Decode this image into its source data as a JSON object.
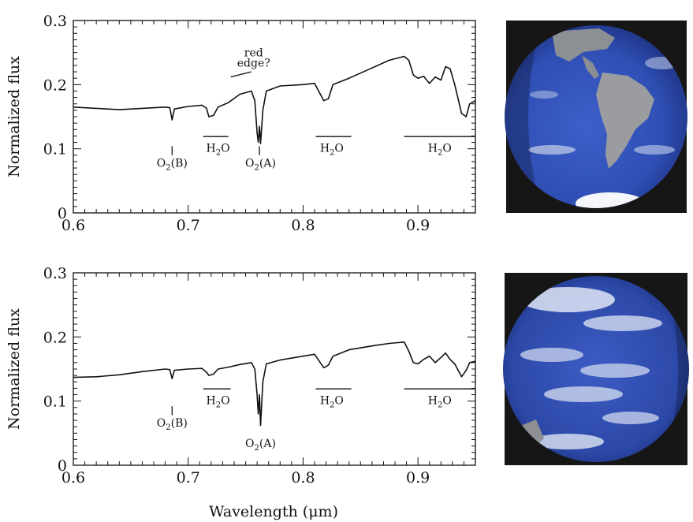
{
  "figure": {
    "x_axis_title": "Wavelength (μm)",
    "photo_top_icon": "earth-globe-americas-icon",
    "photo_bottom_icon": "earth-globe-pacific-icon"
  },
  "chart_data": [
    {
      "type": "line",
      "ylabel": "Normalized flux",
      "xlabel": "",
      "xlim": [
        0.6,
        0.95
      ],
      "ylim": [
        0,
        0.3
      ],
      "x_ticks": [
        "0.6",
        "0.7",
        "0.8",
        "0.9"
      ],
      "y_ticks": [
        "0",
        "0.1",
        "0.2",
        "0.3"
      ],
      "series": [
        {
          "color": "#111111",
          "points": [
            [
              0.6,
              0.165
            ],
            [
              0.62,
              0.163
            ],
            [
              0.64,
              0.161
            ],
            [
              0.66,
              0.163
            ],
            [
              0.68,
              0.165
            ],
            [
              0.684,
              0.164
            ],
            [
              0.686,
              0.145
            ],
            [
              0.688,
              0.162
            ],
            [
              0.7,
              0.166
            ],
            [
              0.712,
              0.168
            ],
            [
              0.716,
              0.163
            ],
            [
              0.718,
              0.15
            ],
            [
              0.722,
              0.152
            ],
            [
              0.726,
              0.165
            ],
            [
              0.735,
              0.172
            ],
            [
              0.745,
              0.185
            ],
            [
              0.755,
              0.19
            ],
            [
              0.758,
              0.175
            ],
            [
              0.76,
              0.125
            ],
            [
              0.761,
              0.11
            ],
            [
              0.762,
              0.135
            ],
            [
              0.763,
              0.108
            ],
            [
              0.765,
              0.16
            ],
            [
              0.768,
              0.19
            ],
            [
              0.78,
              0.198
            ],
            [
              0.8,
              0.2
            ],
            [
              0.81,
              0.202
            ],
            [
              0.815,
              0.185
            ],
            [
              0.818,
              0.175
            ],
            [
              0.822,
              0.178
            ],
            [
              0.826,
              0.2
            ],
            [
              0.84,
              0.21
            ],
            [
              0.86,
              0.226
            ],
            [
              0.875,
              0.238
            ],
            [
              0.888,
              0.244
            ],
            [
              0.892,
              0.238
            ],
            [
              0.896,
              0.215
            ],
            [
              0.9,
              0.21
            ],
            [
              0.905,
              0.213
            ],
            [
              0.91,
              0.202
            ],
            [
              0.915,
              0.212
            ],
            [
              0.92,
              0.207
            ],
            [
              0.924,
              0.228
            ],
            [
              0.928,
              0.225
            ],
            [
              0.932,
              0.2
            ],
            [
              0.938,
              0.155
            ],
            [
              0.942,
              0.15
            ],
            [
              0.945,
              0.17
            ],
            [
              0.95,
              0.175
            ]
          ]
        }
      ],
      "annotations": [
        {
          "text": "red",
          "x": 0.757,
          "y": 0.244
        },
        {
          "text": "edge?",
          "x": 0.757,
          "y": 0.228
        },
        {
          "text": "O",
          "sub": "2",
          "suffix": "(B)",
          "x": 0.686,
          "y": 0.072
        },
        {
          "text": "O",
          "sub": "2",
          "suffix": "(A)",
          "x": 0.763,
          "y": 0.072
        },
        {
          "text": "H",
          "sub": "2",
          "suffix": "O",
          "x": 0.726,
          "y": 0.095
        },
        {
          "text": "H",
          "sub": "2",
          "suffix": "O",
          "x": 0.825,
          "y": 0.095
        },
        {
          "text": "H",
          "sub": "2",
          "suffix": "O",
          "x": 0.919,
          "y": 0.095
        }
      ],
      "bands": [
        {
          "x0": 0.713,
          "x1": 0.735,
          "y": 0.119
        },
        {
          "x0": 0.811,
          "x1": 0.842,
          "y": 0.119
        },
        {
          "x0": 0.888,
          "x1": 0.95,
          "y": 0.119
        }
      ],
      "markers": [
        {
          "x": 0.686,
          "y0": 0.09,
          "y1": 0.104
        },
        {
          "x": 0.762,
          "y0": 0.09,
          "y1": 0.104
        }
      ],
      "leader": {
        "x0": 0.737,
        "y0": 0.212,
        "x1": 0.755,
        "y1": 0.22
      }
    },
    {
      "type": "line",
      "ylabel": "Normalized flux",
      "xlabel": "Wavelength (μm)",
      "xlim": [
        0.6,
        0.95
      ],
      "ylim": [
        0,
        0.3
      ],
      "x_ticks": [
        "0.6",
        "0.7",
        "0.8",
        "0.9"
      ],
      "y_ticks": [
        "0",
        "0.1",
        "0.2",
        "0.3"
      ],
      "series": [
        {
          "color": "#111111",
          "points": [
            [
              0.6,
              0.137
            ],
            [
              0.62,
              0.138
            ],
            [
              0.64,
              0.141
            ],
            [
              0.66,
              0.146
            ],
            [
              0.68,
              0.15
            ],
            [
              0.684,
              0.149
            ],
            [
              0.686,
              0.135
            ],
            [
              0.688,
              0.148
            ],
            [
              0.7,
              0.15
            ],
            [
              0.712,
              0.151
            ],
            [
              0.716,
              0.145
            ],
            [
              0.718,
              0.14
            ],
            [
              0.722,
              0.142
            ],
            [
              0.726,
              0.15
            ],
            [
              0.735,
              0.153
            ],
            [
              0.745,
              0.157
            ],
            [
              0.755,
              0.16
            ],
            [
              0.758,
              0.15
            ],
            [
              0.76,
              0.11
            ],
            [
              0.761,
              0.08
            ],
            [
              0.762,
              0.11
            ],
            [
              0.763,
              0.062
            ],
            [
              0.765,
              0.13
            ],
            [
              0.768,
              0.158
            ],
            [
              0.78,
              0.164
            ],
            [
              0.8,
              0.17
            ],
            [
              0.81,
              0.173
            ],
            [
              0.815,
              0.16
            ],
            [
              0.818,
              0.152
            ],
            [
              0.822,
              0.156
            ],
            [
              0.826,
              0.17
            ],
            [
              0.84,
              0.18
            ],
            [
              0.86,
              0.186
            ],
            [
              0.875,
              0.19
            ],
            [
              0.888,
              0.192
            ],
            [
              0.892,
              0.178
            ],
            [
              0.896,
              0.16
            ],
            [
              0.9,
              0.158
            ],
            [
              0.905,
              0.165
            ],
            [
              0.91,
              0.17
            ],
            [
              0.915,
              0.16
            ],
            [
              0.92,
              0.168
            ],
            [
              0.924,
              0.175
            ],
            [
              0.928,
              0.165
            ],
            [
              0.932,
              0.158
            ],
            [
              0.938,
              0.138
            ],
            [
              0.942,
              0.148
            ],
            [
              0.945,
              0.16
            ],
            [
              0.95,
              0.162
            ]
          ]
        }
      ],
      "annotations": [
        {
          "text": "O",
          "sub": "2",
          "suffix": "(B)",
          "x": 0.686,
          "y": 0.06
        },
        {
          "text": "O",
          "sub": "2",
          "suffix": "(A)",
          "x": 0.763,
          "y": 0.028
        },
        {
          "text": "H",
          "sub": "2",
          "suffix": "O",
          "x": 0.726,
          "y": 0.095
        },
        {
          "text": "H",
          "sub": "2",
          "suffix": "O",
          "x": 0.825,
          "y": 0.095
        },
        {
          "text": "H",
          "sub": "2",
          "suffix": "O",
          "x": 0.919,
          "y": 0.095
        }
      ],
      "bands": [
        {
          "x0": 0.713,
          "x1": 0.737,
          "y": 0.119
        },
        {
          "x0": 0.811,
          "x1": 0.842,
          "y": 0.119
        },
        {
          "x0": 0.888,
          "x1": 0.95,
          "y": 0.119
        }
      ],
      "markers": [
        {
          "x": 0.686,
          "y0": 0.078,
          "y1": 0.092
        }
      ]
    }
  ]
}
